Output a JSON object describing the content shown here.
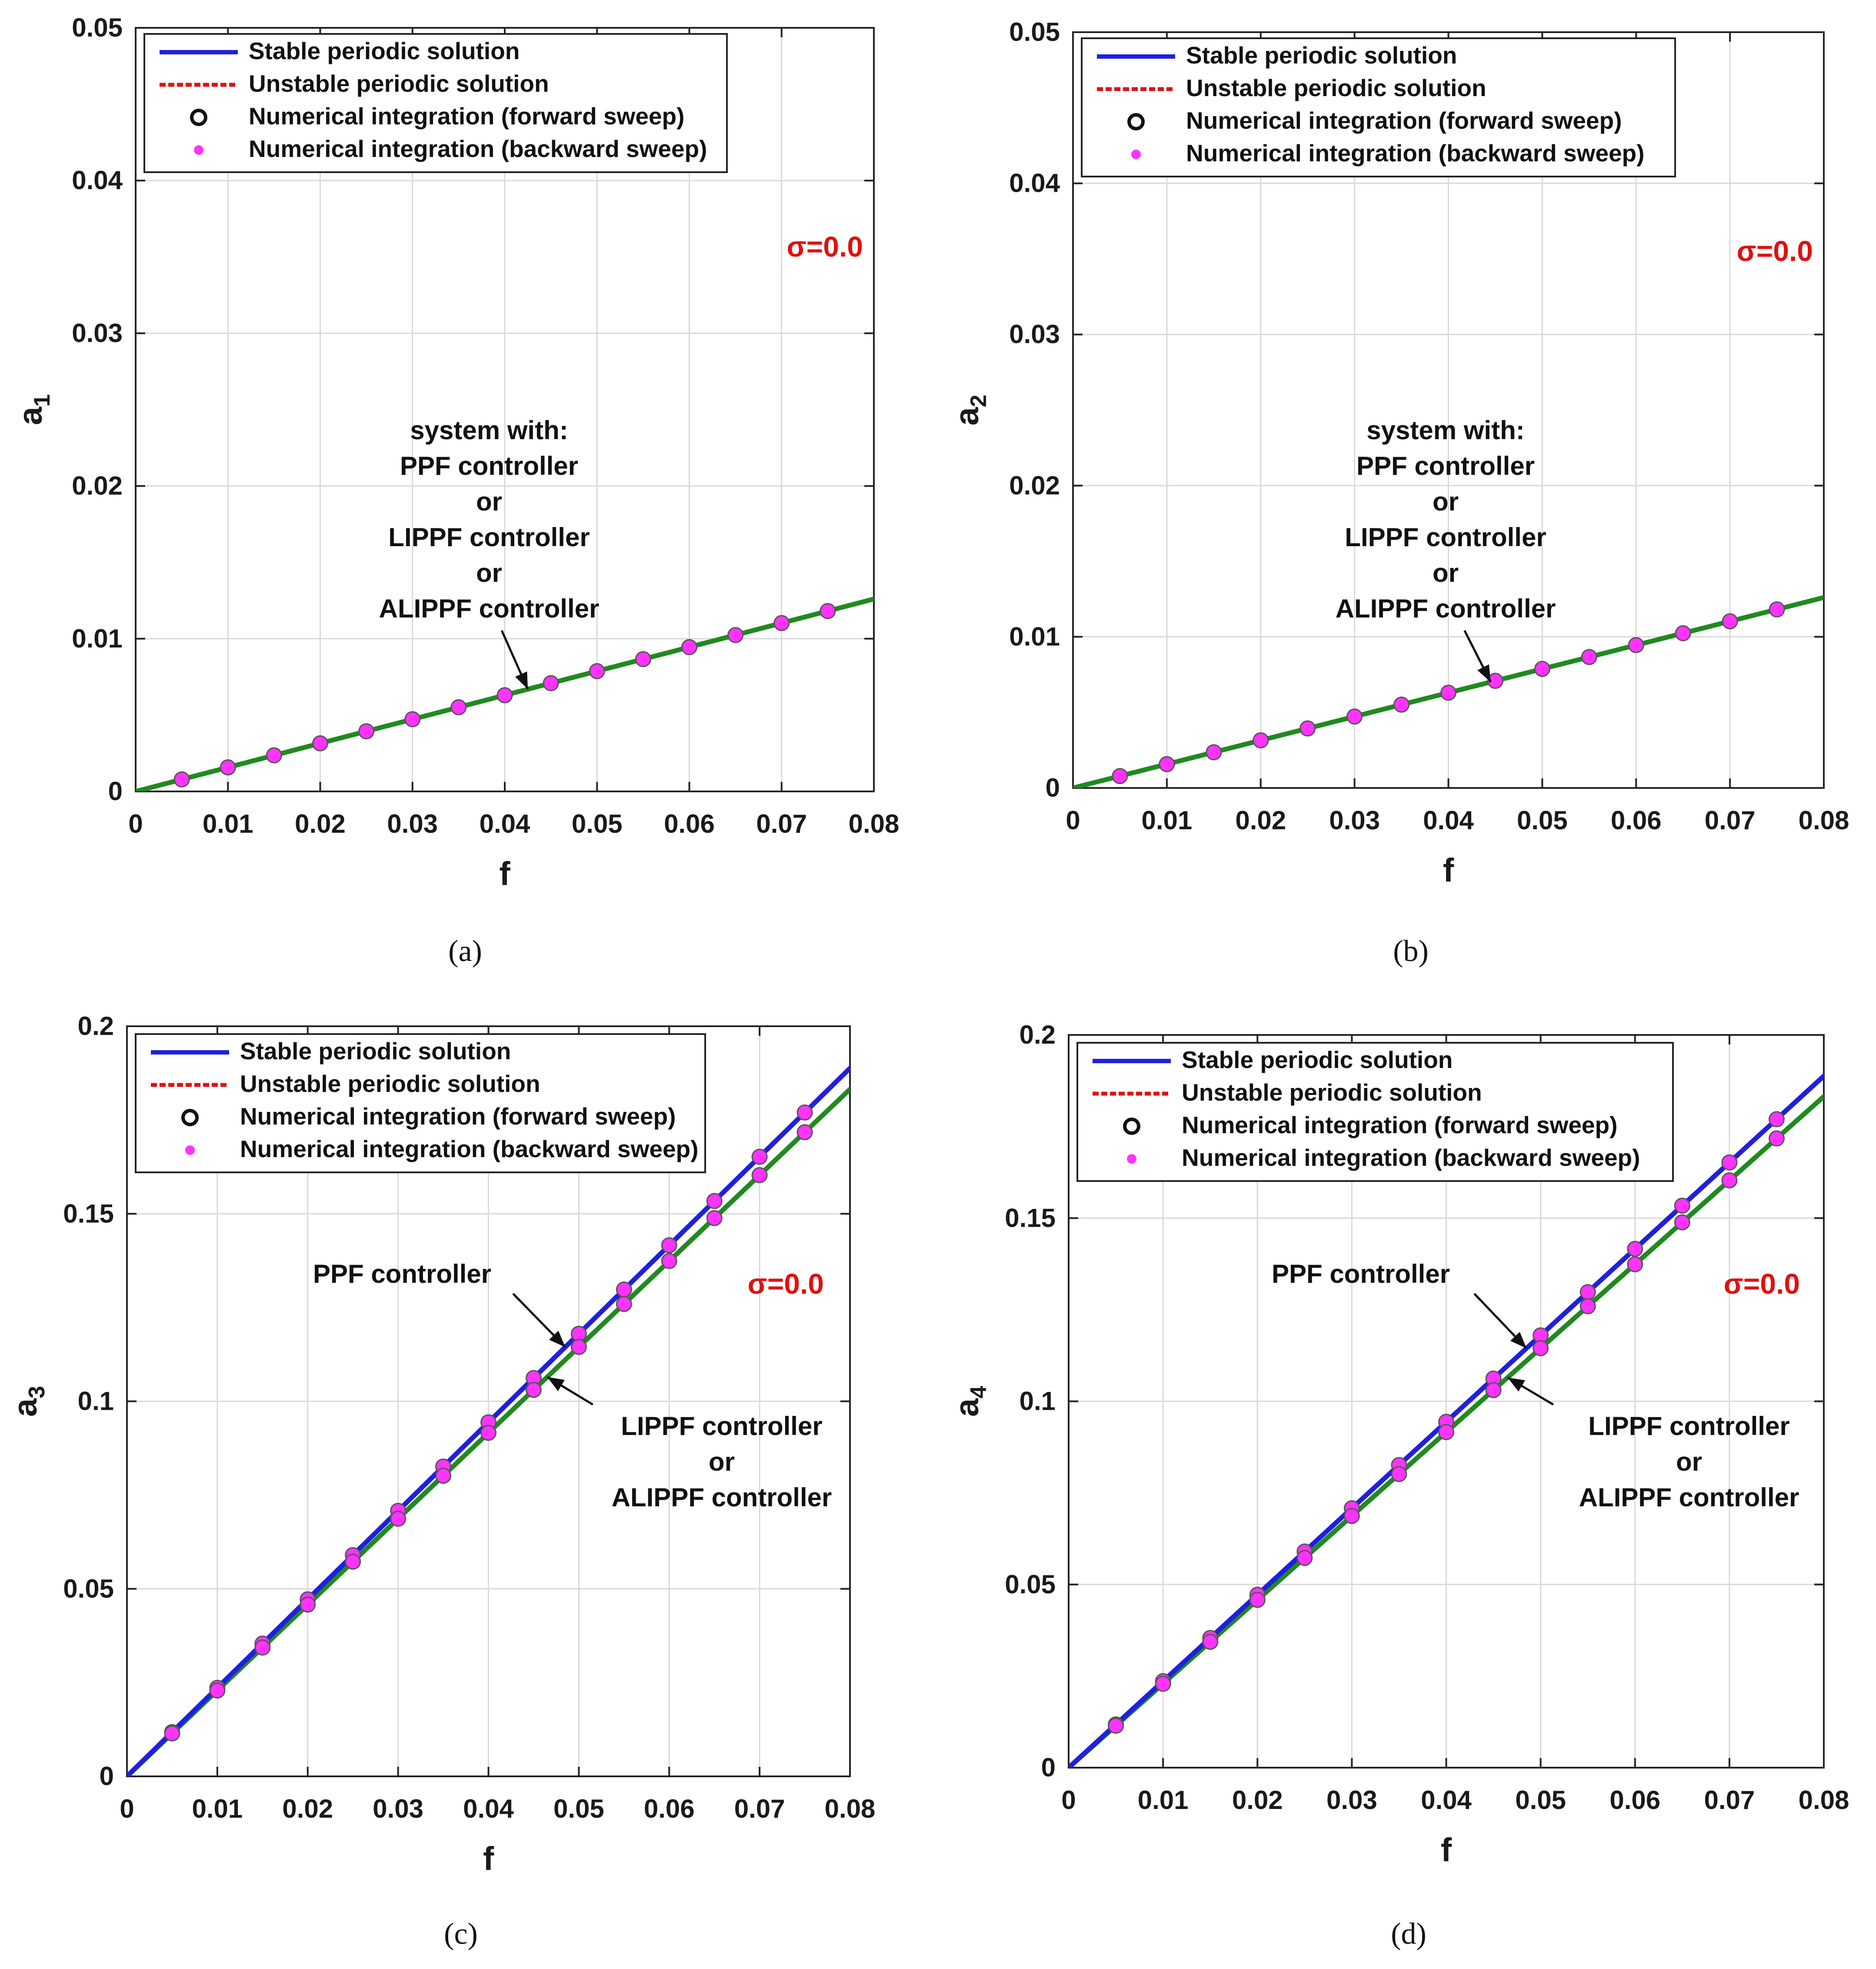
{
  "colors": {
    "stable": "#1f1fe0",
    "unstable": "#e01010",
    "green": "#1f8a1f",
    "marker_open": "#111111",
    "marker_fill": "#ff33ff",
    "sigma": "#e01010",
    "grid": "#d9d9d9"
  },
  "legend": {
    "items": [
      {
        "label": "Stable periodic solution",
        "kind": "line",
        "style": "solid",
        "color": "#1f1fe0"
      },
      {
        "label": "Unstable periodic solution",
        "kind": "line",
        "style": "dashed",
        "color": "#e01010"
      },
      {
        "label": "Numerical integration (forward sweep)",
        "kind": "marker",
        "marker": "circle-open",
        "color": "#111111"
      },
      {
        "label": "Numerical integration (backward sweep)",
        "kind": "marker",
        "marker": "dot-filled",
        "color": "#ff33ff"
      }
    ]
  },
  "chart_data": [
    {
      "id": "a",
      "type": "line",
      "caption": "(a)",
      "xlabel": "f",
      "ylabel": "a",
      "ylabel_sub": "1",
      "xlim": [
        0,
        0.08
      ],
      "ylim": [
        0,
        0.05
      ],
      "xticks": [
        0,
        0.01,
        0.02,
        0.03,
        0.04,
        0.05,
        0.06,
        0.07,
        0.08
      ],
      "yticks": [
        0,
        0.01,
        0.02,
        0.03,
        0.04,
        0.05
      ],
      "xtick_labels": [
        "0",
        "0.01",
        "0.02",
        "0.03",
        "0.04",
        "0.05",
        "0.06",
        "0.07",
        "0.08"
      ],
      "ytick_labels": [
        "0",
        "0.01",
        "0.02",
        "0.03",
        "0.04",
        "0.05"
      ],
      "sigma_label": "σ=0.0",
      "series": [
        {
          "name": "system with PPF / LIPPF / ALIPPF controller",
          "color": "#1f8a1f",
          "slope": 0.1575,
          "x": [
            0,
            0.08
          ],
          "y": [
            0,
            0.0126
          ]
        }
      ],
      "markers": {
        "x": [
          0.005,
          0.01,
          0.015,
          0.02,
          0.025,
          0.03,
          0.035,
          0.04,
          0.045,
          0.05,
          0.055,
          0.06,
          0.065,
          0.07,
          0.075
        ],
        "slopes": [
          0.1575
        ]
      },
      "annotations": [
        {
          "lines": [
            "system with:",
            "PPF controller",
            "or",
            "LIPPF controller",
            "or",
            "ALIPPF controller"
          ],
          "arrow_to_x": 0.0425
        }
      ]
    },
    {
      "id": "b",
      "type": "line",
      "caption": "(b)",
      "xlabel": "f",
      "ylabel": "a",
      "ylabel_sub": "2",
      "xlim": [
        0,
        0.08
      ],
      "ylim": [
        0,
        0.05
      ],
      "xticks": [
        0,
        0.01,
        0.02,
        0.03,
        0.04,
        0.05,
        0.06,
        0.07,
        0.08
      ],
      "yticks": [
        0,
        0.01,
        0.02,
        0.03,
        0.04,
        0.05
      ],
      "xtick_labels": [
        "0",
        "0.01",
        "0.02",
        "0.03",
        "0.04",
        "0.05",
        "0.06",
        "0.07",
        "0.08"
      ],
      "ytick_labels": [
        "0",
        "0.01",
        "0.02",
        "0.03",
        "0.04",
        "0.05"
      ],
      "sigma_label": "σ=0.0",
      "series": [
        {
          "name": "system with PPF / LIPPF / ALIPPF controller",
          "color": "#1f8a1f",
          "slope": 0.1575,
          "x": [
            0,
            0.08
          ],
          "y": [
            0,
            0.0126
          ]
        }
      ],
      "markers": {
        "x": [
          0.005,
          0.01,
          0.015,
          0.02,
          0.025,
          0.03,
          0.035,
          0.04,
          0.045,
          0.05,
          0.055,
          0.06,
          0.065,
          0.07,
          0.075
        ],
        "slopes": [
          0.1575
        ]
      },
      "annotations": [
        {
          "lines": [
            "system with:",
            "PPF controller",
            "or",
            "LIPPF controller",
            "or",
            "ALIPPF controller"
          ],
          "arrow_to_x": 0.0445
        }
      ]
    },
    {
      "id": "c",
      "type": "line",
      "caption": "(c)",
      "xlabel": "f",
      "ylabel": "a",
      "ylabel_sub": "3",
      "xlim": [
        0,
        0.08
      ],
      "ylim": [
        0,
        0.2
      ],
      "xticks": [
        0,
        0.01,
        0.02,
        0.03,
        0.04,
        0.05,
        0.06,
        0.07,
        0.08
      ],
      "yticks": [
        0,
        0.05,
        0.1,
        0.15,
        0.2
      ],
      "xtick_labels": [
        "0",
        "0.01",
        "0.02",
        "0.03",
        "0.04",
        "0.05",
        "0.06",
        "0.07",
        "0.08"
      ],
      "ytick_labels": [
        "0",
        "0.05",
        "0.1",
        "0.15",
        "0.2"
      ],
      "sigma_label": "σ=0.0",
      "series": [
        {
          "name": "PPF controller",
          "color": "#1f1fe0",
          "slope": 2.36,
          "x": [
            0,
            0.08
          ],
          "y": [
            0,
            0.1888
          ]
        },
        {
          "name": "LIPPF controller or ALIPPF controller",
          "color": "#1f8a1f",
          "slope": 2.29,
          "x": [
            0,
            0.08
          ],
          "y": [
            0,
            0.1832
          ]
        }
      ],
      "markers": {
        "x": [
          0.005,
          0.01,
          0.015,
          0.02,
          0.025,
          0.03,
          0.035,
          0.04,
          0.045,
          0.05,
          0.055,
          0.06,
          0.065,
          0.07,
          0.075
        ],
        "slopes": [
          2.36,
          2.29
        ]
      },
      "annotations": [
        {
          "lines": [
            "PPF controller"
          ],
          "arrow_to_x": 0.0485,
          "target_series": 0
        },
        {
          "lines": [
            "LIPPF controller",
            "or",
            "ALIPPF controller"
          ],
          "arrow_to_x": 0.0465,
          "target_series": 1
        }
      ]
    },
    {
      "id": "d",
      "type": "line",
      "caption": "(d)",
      "xlabel": "f",
      "ylabel": "a",
      "ylabel_sub": "4",
      "xlim": [
        0,
        0.08
      ],
      "ylim": [
        0,
        0.2
      ],
      "xticks": [
        0,
        0.01,
        0.02,
        0.03,
        0.04,
        0.05,
        0.06,
        0.07,
        0.08
      ],
      "yticks": [
        0,
        0.05,
        0.1,
        0.15,
        0.2
      ],
      "xtick_labels": [
        "0",
        "0.01",
        "0.02",
        "0.03",
        "0.04",
        "0.05",
        "0.06",
        "0.07",
        "0.08"
      ],
      "ytick_labels": [
        "0",
        "0.05",
        "0.1",
        "0.15",
        "0.2"
      ],
      "sigma_label": "σ=0.0",
      "series": [
        {
          "name": "PPF controller",
          "color": "#1f1fe0",
          "slope": 2.36,
          "x": [
            0,
            0.08
          ],
          "y": [
            0,
            0.1888
          ]
        },
        {
          "name": "LIPPF controller or ALIPPF controller",
          "color": "#1f8a1f",
          "slope": 2.29,
          "x": [
            0,
            0.08
          ],
          "y": [
            0,
            0.1832
          ]
        }
      ],
      "markers": {
        "x": [
          0.005,
          0.01,
          0.015,
          0.02,
          0.025,
          0.03,
          0.035,
          0.04,
          0.045,
          0.05,
          0.055,
          0.06,
          0.065,
          0.07,
          0.075
        ],
        "slopes": [
          2.36,
          2.29
        ]
      },
      "annotations": [
        {
          "lines": [
            "PPF controller"
          ],
          "arrow_to_x": 0.0485,
          "target_series": 0
        },
        {
          "lines": [
            "LIPPF controller",
            "or",
            "ALIPPF controller"
          ],
          "arrow_to_x": 0.0465,
          "target_series": 1
        }
      ]
    }
  ]
}
